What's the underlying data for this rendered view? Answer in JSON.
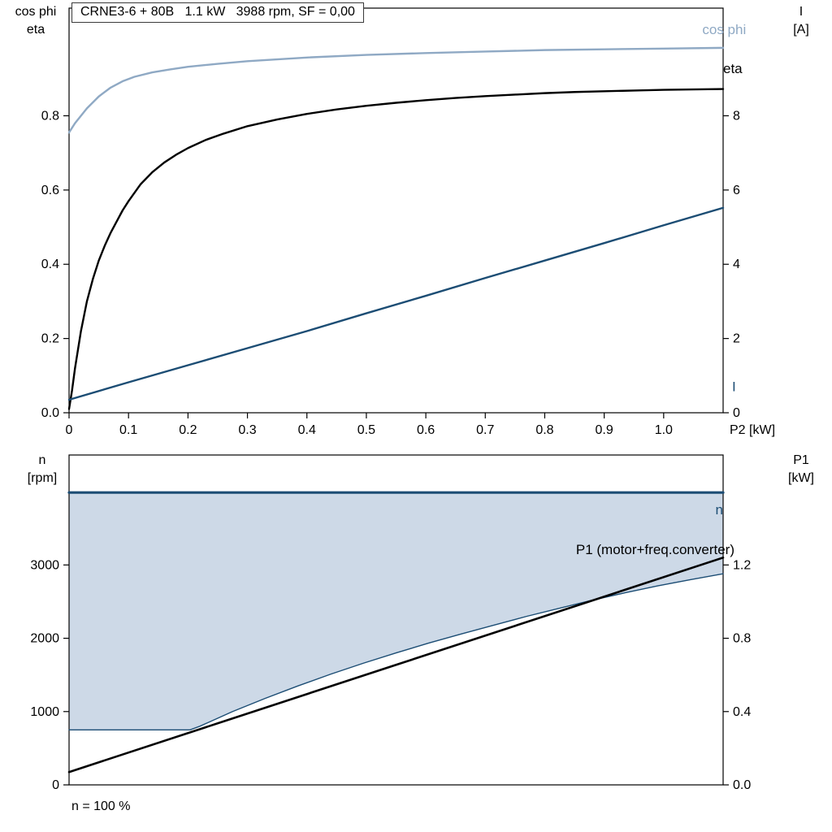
{
  "colors": {
    "dark_blue": "#1c4d74",
    "light_blue": "#8fa9c4",
    "black": "#000000",
    "fill_region": "#cdd9e7",
    "frame": "#000000",
    "background": "#ffffff"
  },
  "chart_data": [
    {
      "type": "line",
      "title": "CRNE3-6 + 80B   1.1 kW   3988 rpm, SF = 0,00",
      "left_axis": {
        "title_lines": [
          "cos phi",
          "eta"
        ],
        "range": [
          0,
          1.09
        ],
        "ticks": [
          {
            "v": 0,
            "label": "0.0"
          },
          {
            "v": 0.2,
            "label": "0.2"
          },
          {
            "v": 0.4,
            "label": "0.4"
          },
          {
            "v": 0.6,
            "label": "0.6"
          },
          {
            "v": 0.8,
            "label": "0.8"
          }
        ]
      },
      "right_axis": {
        "title_lines": [
          "I",
          "[A]"
        ],
        "range": [
          0,
          10.9
        ],
        "ticks": [
          {
            "v": 0,
            "label": "0"
          },
          {
            "v": 2,
            "label": "2"
          },
          {
            "v": 4,
            "label": "4"
          },
          {
            "v": 6,
            "label": "6"
          },
          {
            "v": 8,
            "label": "8"
          }
        ]
      },
      "x_axis": {
        "range": [
          0,
          1.1
        ],
        "end_label": "P2 [kW]",
        "ticks": [
          {
            "v": 0,
            "label": "0"
          },
          {
            "v": 0.1,
            "label": "0.1"
          },
          {
            "v": 0.2,
            "label": "0.2"
          },
          {
            "v": 0.3,
            "label": "0.3"
          },
          {
            "v": 0.4,
            "label": "0.4"
          },
          {
            "v": 0.5,
            "label": "0.5"
          },
          {
            "v": 0.6,
            "label": "0.6"
          },
          {
            "v": 0.7,
            "label": "0.7"
          },
          {
            "v": 0.8,
            "label": "0.8"
          },
          {
            "v": 0.9,
            "label": "0.9"
          },
          {
            "v": 1.0,
            "label": "1.0"
          }
        ]
      },
      "series": [
        {
          "name": "cos phi",
          "axis": "left",
          "color": "#8fa9c4",
          "width": 2.4,
          "label": {
            "text": "cos phi",
            "x": 1.065,
            "v": 1.02,
            "anchor": "start",
            "color": "#8fa9c4"
          },
          "points": [
            [
              0,
              0.755
            ],
            [
              0.01,
              0.78
            ],
            [
              0.02,
              0.8
            ],
            [
              0.03,
              0.82
            ],
            [
              0.05,
              0.852
            ],
            [
              0.07,
              0.876
            ],
            [
              0.09,
              0.893
            ],
            [
              0.11,
              0.905
            ],
            [
              0.14,
              0.917
            ],
            [
              0.17,
              0.925
            ],
            [
              0.2,
              0.932
            ],
            [
              0.25,
              0.94
            ],
            [
              0.3,
              0.947
            ],
            [
              0.35,
              0.952
            ],
            [
              0.4,
              0.957
            ],
            [
              0.5,
              0.964
            ],
            [
              0.6,
              0.969
            ],
            [
              0.7,
              0.973
            ],
            [
              0.8,
              0.977
            ],
            [
              0.9,
              0.979
            ],
            [
              1.0,
              0.981
            ],
            [
              1.1,
              0.983
            ]
          ]
        },
        {
          "name": "eta",
          "axis": "left",
          "color": "#000000",
          "width": 2.4,
          "label": {
            "text": "eta",
            "x": 1.1,
            "v": 0.915,
            "anchor": "start",
            "color": "#000000"
          },
          "points": [
            [
              0,
              0.01
            ],
            [
              0.005,
              0.06
            ],
            [
              0.01,
              0.12
            ],
            [
              0.02,
              0.22
            ],
            [
              0.03,
              0.3
            ],
            [
              0.04,
              0.36
            ],
            [
              0.05,
              0.41
            ],
            [
              0.06,
              0.45
            ],
            [
              0.07,
              0.485
            ],
            [
              0.08,
              0.515
            ],
            [
              0.09,
              0.545
            ],
            [
              0.1,
              0.57
            ],
            [
              0.12,
              0.615
            ],
            [
              0.14,
              0.648
            ],
            [
              0.16,
              0.674
            ],
            [
              0.18,
              0.695
            ],
            [
              0.2,
              0.713
            ],
            [
              0.23,
              0.735
            ],
            [
              0.26,
              0.752
            ],
            [
              0.3,
              0.772
            ],
            [
              0.35,
              0.79
            ],
            [
              0.4,
              0.805
            ],
            [
              0.45,
              0.817
            ],
            [
              0.5,
              0.827
            ],
            [
              0.55,
              0.835
            ],
            [
              0.6,
              0.842
            ],
            [
              0.65,
              0.848
            ],
            [
              0.7,
              0.853
            ],
            [
              0.75,
              0.857
            ],
            [
              0.8,
              0.861
            ],
            [
              0.85,
              0.864
            ],
            [
              0.9,
              0.866
            ],
            [
              0.95,
              0.868
            ],
            [
              1.0,
              0.87
            ],
            [
              1.05,
              0.871
            ],
            [
              1.1,
              0.872
            ]
          ]
        },
        {
          "name": "I",
          "axis": "right",
          "color": "#1c4d74",
          "width": 2.4,
          "label": {
            "text": "I",
            "x": 1.115,
            "v": 0.575,
            "anchor": "start",
            "color": "#1c4d74"
          },
          "points": [
            [
              0,
              0.35
            ],
            [
              0.1,
              0.82
            ],
            [
              0.2,
              1.28
            ],
            [
              0.3,
              1.74
            ],
            [
              0.4,
              2.2
            ],
            [
              0.5,
              2.68
            ],
            [
              0.6,
              3.15
            ],
            [
              0.7,
              3.63
            ],
            [
              0.8,
              4.1
            ],
            [
              0.9,
              4.57
            ],
            [
              1.0,
              5.05
            ],
            [
              1.1,
              5.52
            ]
          ]
        }
      ]
    },
    {
      "type": "line",
      "footnote": "n = 100 %",
      "left_axis": {
        "title_lines": [
          "n",
          "[rpm]"
        ],
        "range": [
          0,
          4500
        ],
        "ticks": [
          {
            "v": 0,
            "label": "0"
          },
          {
            "v": 1000,
            "label": "1000"
          },
          {
            "v": 2000,
            "label": "2000"
          },
          {
            "v": 3000,
            "label": "3000"
          }
        ]
      },
      "right_axis": {
        "title_lines": [
          "P1",
          "[kW]"
        ],
        "range": [
          0,
          1.8
        ],
        "ticks": [
          {
            "v": 0,
            "label": "0.0"
          },
          {
            "v": 0.4,
            "label": "0.4"
          },
          {
            "v": 0.8,
            "label": "0.8"
          },
          {
            "v": 1.2,
            "label": "1.2"
          }
        ]
      },
      "x_axis": {
        "range": [
          0,
          1
        ],
        "end_label": "",
        "ticks": []
      },
      "fill_between": {
        "upper": "n",
        "lower": "n min",
        "color": "#cdd9e7"
      },
      "series": [
        {
          "name": "n min",
          "axis": "left",
          "color": "#1c4d74",
          "width": 1.4,
          "points": [
            [
              0,
              750
            ],
            [
              0.185,
              750
            ],
            [
              0.2,
              800
            ],
            [
              0.25,
              1000
            ],
            [
              0.3,
              1180
            ],
            [
              0.35,
              1350
            ],
            [
              0.4,
              1510
            ],
            [
              0.45,
              1660
            ],
            [
              0.5,
              1800
            ],
            [
              0.55,
              1935
            ],
            [
              0.6,
              2060
            ],
            [
              0.65,
              2180
            ],
            [
              0.7,
              2300
            ],
            [
              0.75,
              2410
            ],
            [
              0.8,
              2520
            ],
            [
              0.85,
              2620
            ],
            [
              0.9,
              2715
            ],
            [
              0.95,
              2800
            ],
            [
              1.0,
              2880
            ]
          ]
        },
        {
          "name": "P1",
          "axis": "right",
          "color": "#000000",
          "width": 2.6,
          "label": {
            "text": "P1 (motor+freq.converter)",
            "x": 0.775,
            "v": 1.26,
            "anchor": "start",
            "color": "#000000"
          },
          "points": [
            [
              0,
              0.07
            ],
            [
              0.5,
              0.655
            ],
            [
              1.0,
              1.24
            ]
          ]
        },
        {
          "name": "n",
          "axis": "left",
          "color": "#1c4d74",
          "width": 3.2,
          "label": {
            "text": "n",
            "x": 1.0,
            "v": 3690,
            "anchor": "end",
            "color": "#1c4d74"
          },
          "points": [
            [
              0,
              3988
            ],
            [
              1,
              3988
            ]
          ]
        }
      ]
    }
  ]
}
